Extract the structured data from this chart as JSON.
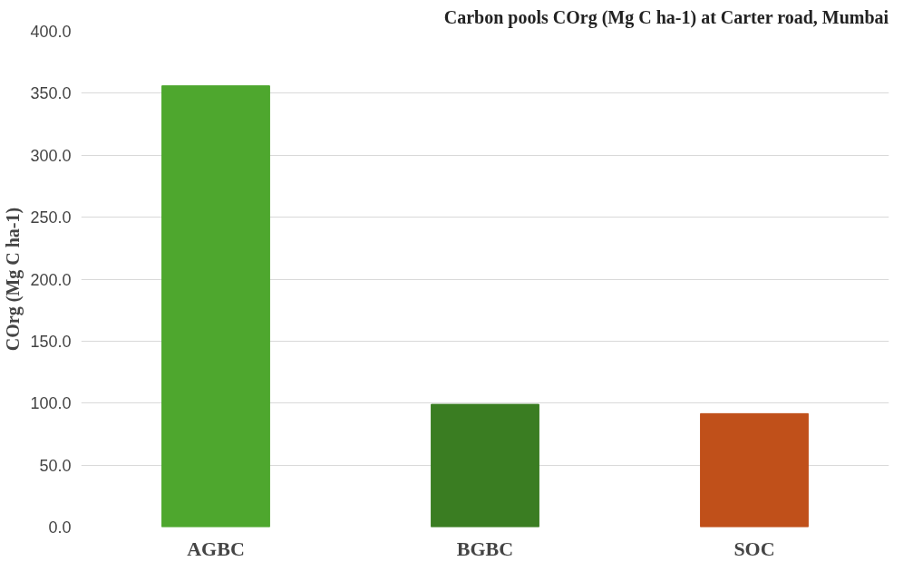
{
  "chart_data": {
    "type": "bar",
    "title": "Carbon pools COrg (Mg C ha-1) at Carter road, Mumbai",
    "ylabel": "COrg (Mg C ha-1)",
    "categories": [
      "AGBC",
      "BGBC",
      "SOC"
    ],
    "values": [
      356,
      99,
      91.5
    ],
    "colors": [
      "#4ea72e",
      "#3a7d22",
      "#c0501a"
    ],
    "ylim": [
      0,
      400
    ],
    "yticks": [
      {
        "value": 0,
        "label": "0.0"
      },
      {
        "value": 50,
        "label": "50.0"
      },
      {
        "value": 100,
        "label": "100.0"
      },
      {
        "value": 150,
        "label": "150.0"
      },
      {
        "value": 200,
        "label": "200.0"
      },
      {
        "value": 250,
        "label": "250.0"
      },
      {
        "value": 300,
        "label": "300.0"
      },
      {
        "value": 350,
        "label": "350.0"
      },
      {
        "value": 400,
        "label": "400.0"
      }
    ],
    "grid": "y"
  }
}
